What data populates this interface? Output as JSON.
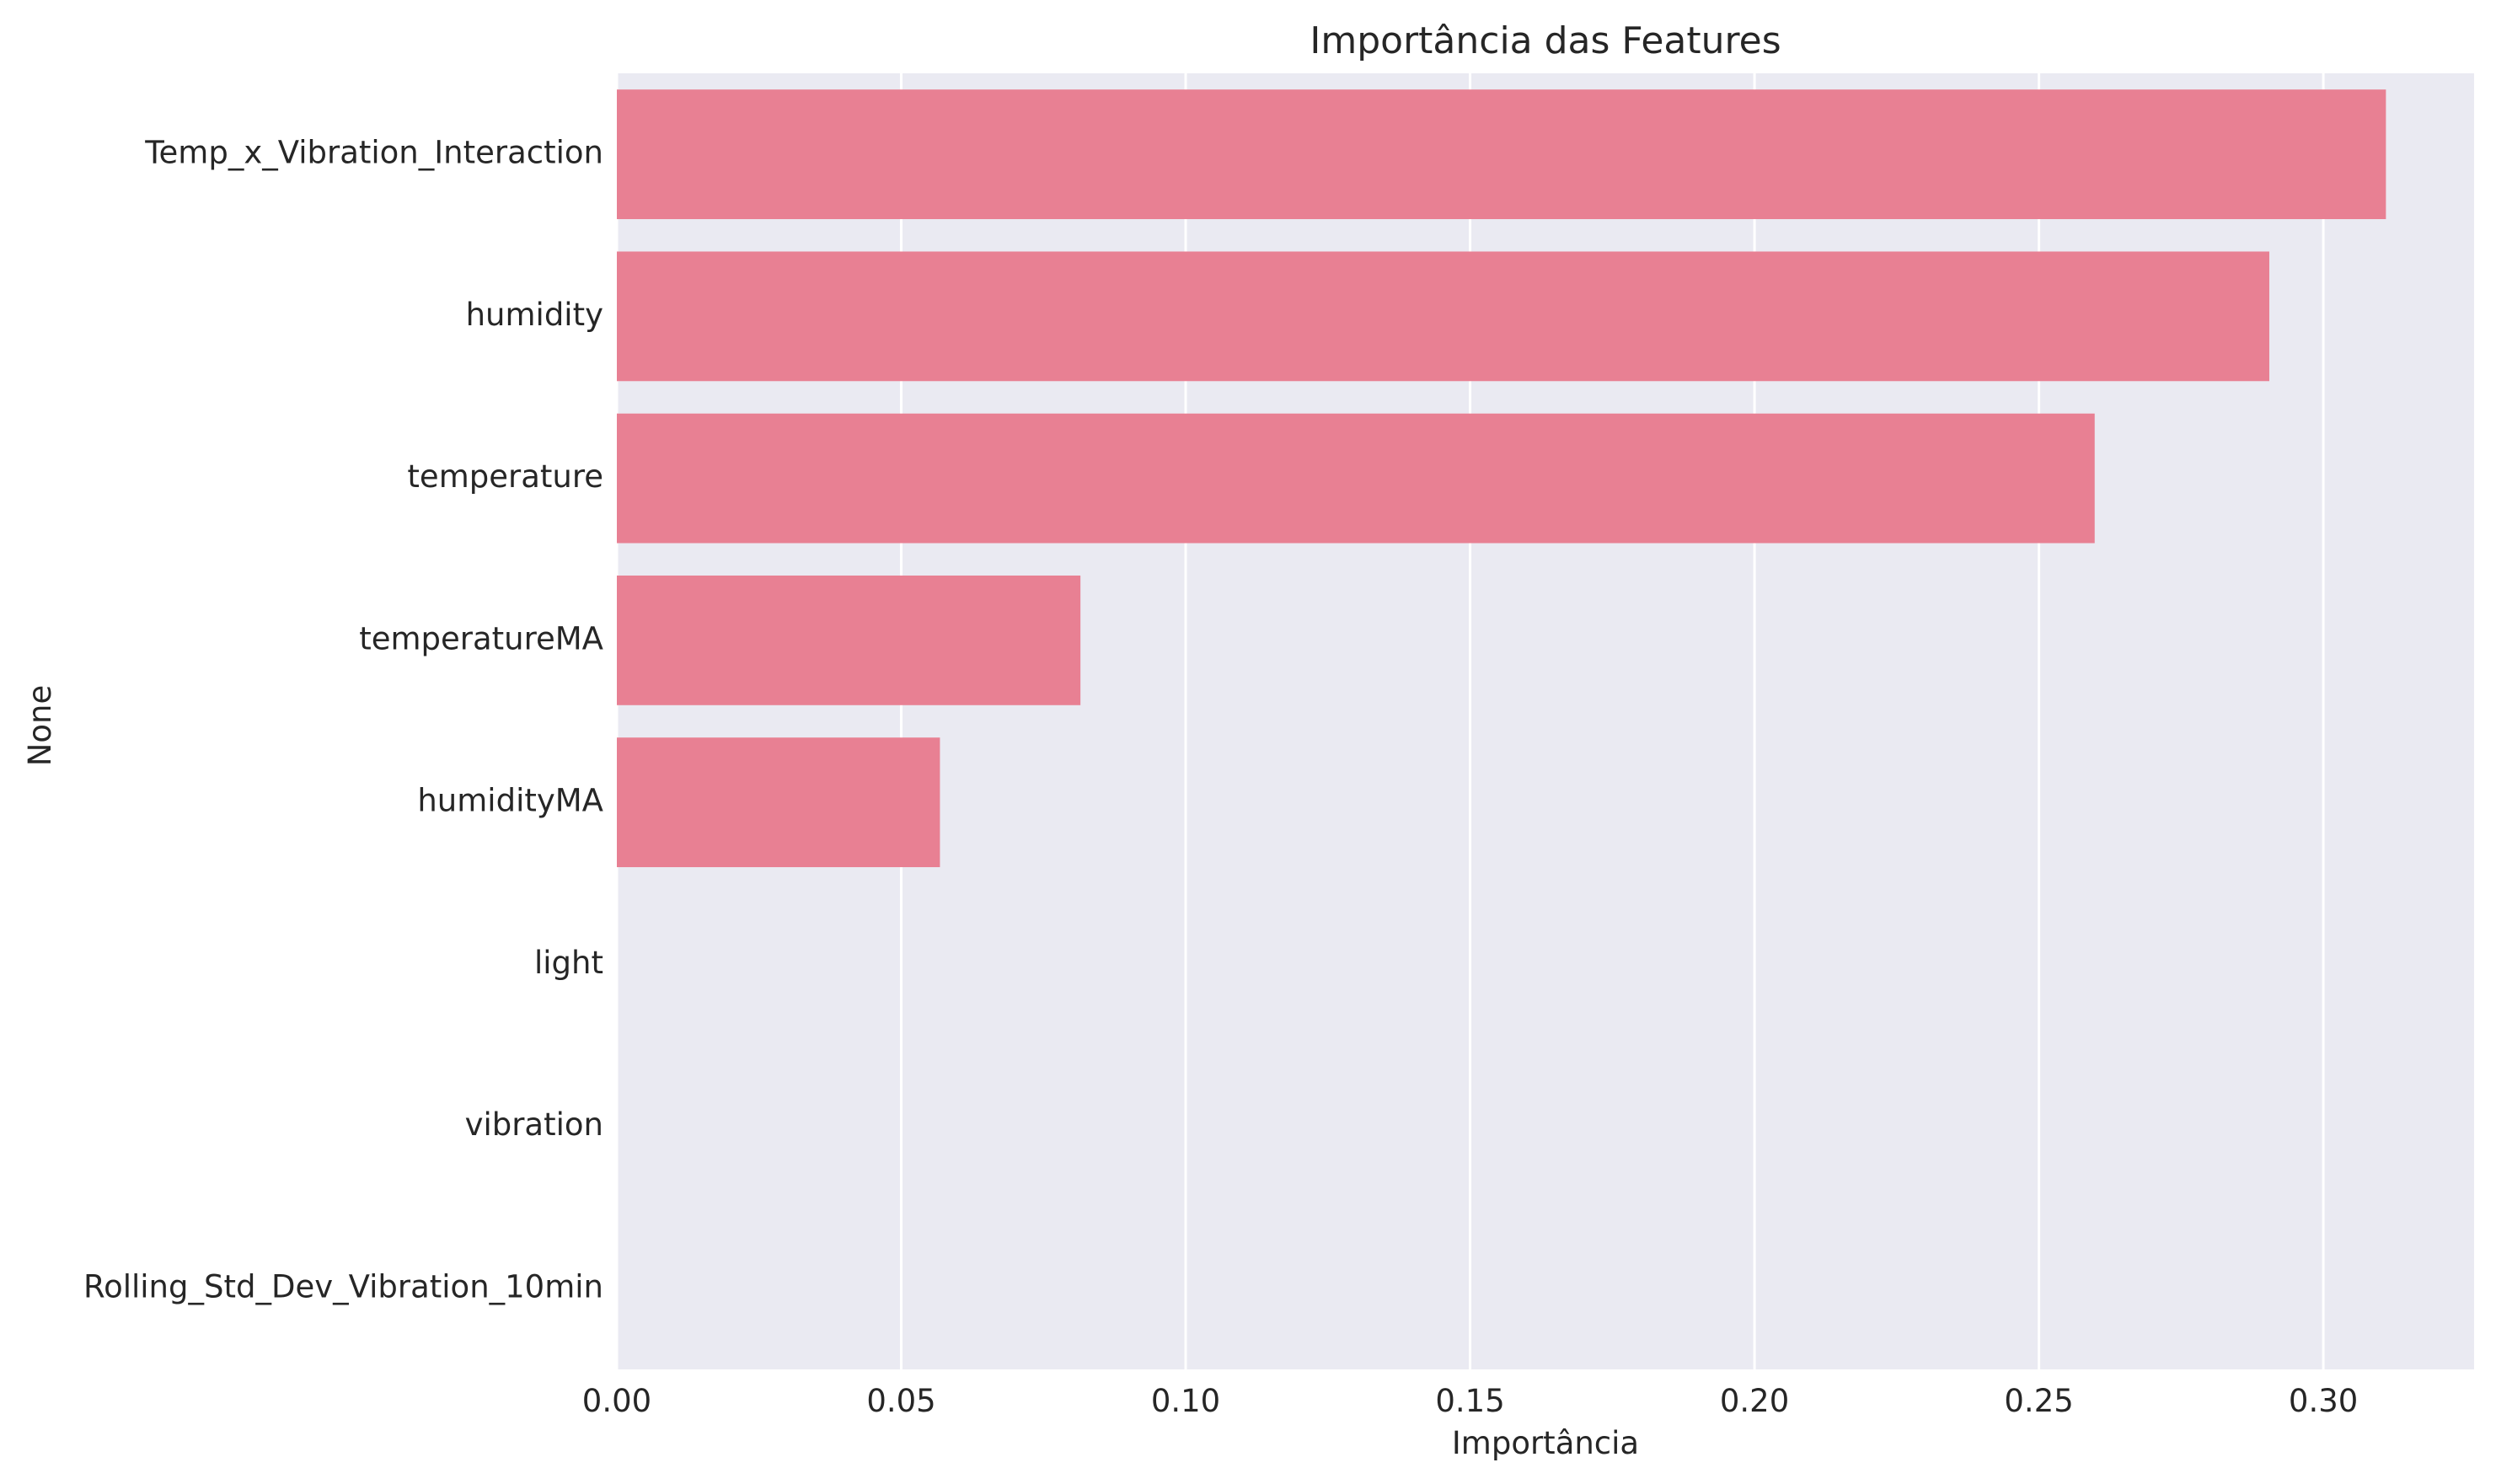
{
  "chart_data": {
    "type": "bar",
    "orientation": "horizontal",
    "title": "Importância das Features",
    "xlabel": "Importância",
    "ylabel": "None",
    "categories": [
      "Temp_x_Vibration_Interaction",
      "humidity",
      "temperature",
      "temperatureMA",
      "humidityMA",
      "light",
      "vibration",
      "Rolling_Std_Dev_Vibration_10min"
    ],
    "values": [
      0.311,
      0.2905,
      0.2598,
      0.0815,
      0.0568,
      0,
      0,
      0
    ],
    "xlim": [
      0,
      0.3265
    ],
    "xticks": [
      0,
      0.05,
      0.1,
      0.15,
      0.2,
      0.25,
      0.3
    ],
    "xtick_labels": [
      "0.00",
      "0.05",
      "0.10",
      "0.15",
      "0.20",
      "0.25",
      "0.30"
    ],
    "grid": true,
    "legend": "none",
    "colors": {
      "bar": "#e88093",
      "plot_background": "#eaeaf2",
      "grid": "#ffffff",
      "text": "#262626"
    }
  }
}
